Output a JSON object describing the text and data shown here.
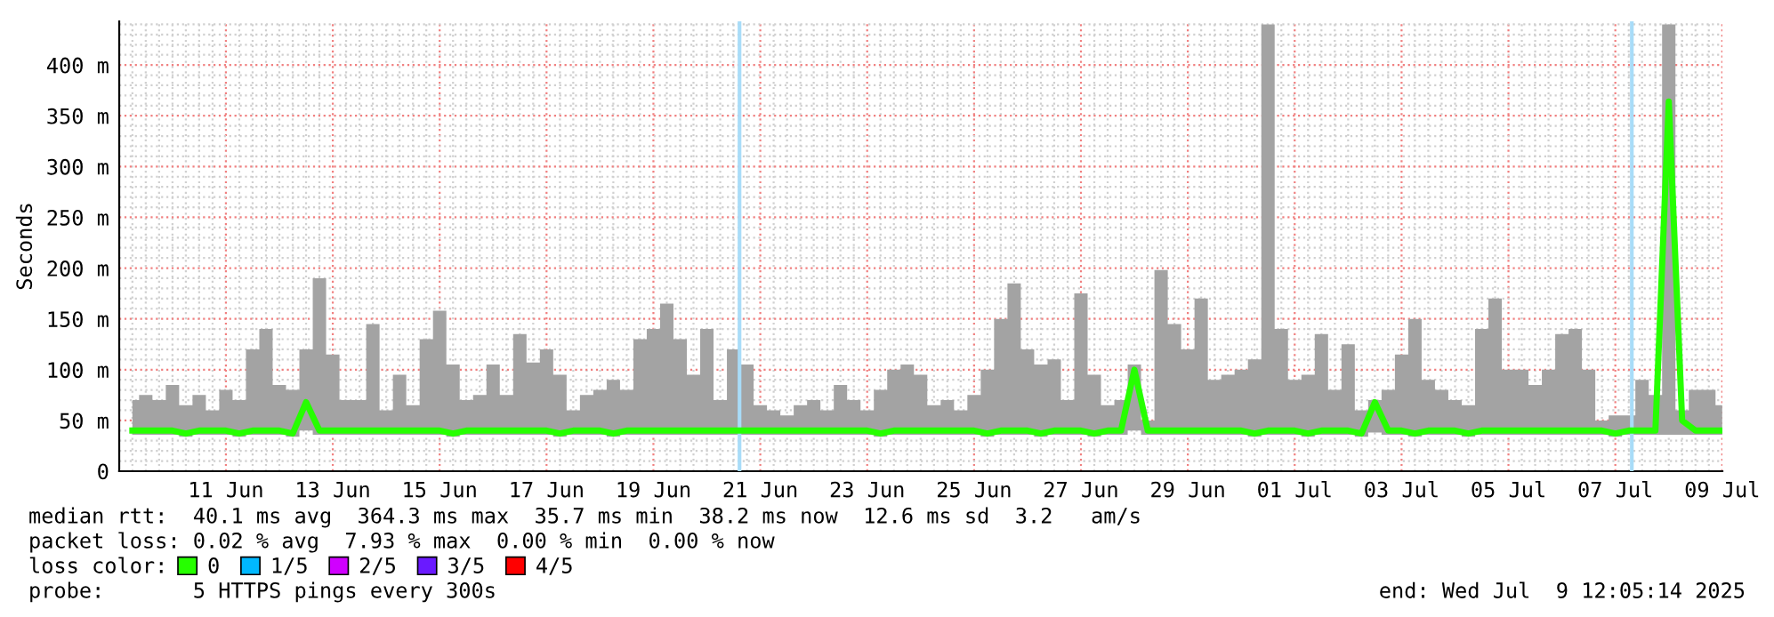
{
  "chart_data": {
    "type": "line",
    "ylabel": "Seconds",
    "x": [
      "2025-06-09T18:00",
      "2025-06-10T00:00",
      "2025-06-10T06:00",
      "2025-06-10T12:00",
      "2025-06-10T18:00",
      "2025-06-11T00:00",
      "2025-06-11T06:00",
      "2025-06-11T12:00",
      "2025-06-11T18:00",
      "2025-06-12T00:00",
      "2025-06-12T06:00",
      "2025-06-12T12:00",
      "2025-06-12T18:00",
      "2025-06-13T00:00",
      "2025-06-13T06:00",
      "2025-06-13T12:00",
      "2025-06-13T18:00",
      "2025-06-14T00:00",
      "2025-06-14T06:00",
      "2025-06-14T12:00",
      "2025-06-14T18:00",
      "2025-06-15T00:00",
      "2025-06-15T06:00",
      "2025-06-15T12:00",
      "2025-06-15T18:00",
      "2025-06-16T00:00",
      "2025-06-16T06:00",
      "2025-06-16T12:00",
      "2025-06-16T18:00",
      "2025-06-17T00:00",
      "2025-06-17T06:00",
      "2025-06-17T12:00",
      "2025-06-17T18:00",
      "2025-06-18T00:00",
      "2025-06-18T06:00",
      "2025-06-18T12:00",
      "2025-06-18T18:00",
      "2025-06-19T00:00",
      "2025-06-19T06:00",
      "2025-06-19T12:00",
      "2025-06-19T18:00",
      "2025-06-20T00:00",
      "2025-06-20T06:00",
      "2025-06-20T12:00",
      "2025-06-20T18:00",
      "2025-06-21T00:00",
      "2025-06-21T06:00",
      "2025-06-21T12:00",
      "2025-06-21T18:00",
      "2025-06-22T00:00",
      "2025-06-22T06:00",
      "2025-06-22T12:00",
      "2025-06-22T18:00",
      "2025-06-23T00:00",
      "2025-06-23T06:00",
      "2025-06-23T12:00",
      "2025-06-23T18:00",
      "2025-06-24T00:00",
      "2025-06-24T06:00",
      "2025-06-24T12:00",
      "2025-06-24T18:00",
      "2025-06-25T00:00",
      "2025-06-25T06:00",
      "2025-06-25T12:00",
      "2025-06-25T18:00",
      "2025-06-26T00:00",
      "2025-06-26T06:00",
      "2025-06-26T12:00",
      "2025-06-26T18:00",
      "2025-06-27T00:00",
      "2025-06-27T06:00",
      "2025-06-27T12:00",
      "2025-06-27T18:00",
      "2025-06-28T00:00",
      "2025-06-28T06:00",
      "2025-06-28T12:00",
      "2025-06-28T18:00",
      "2025-06-29T00:00",
      "2025-06-29T06:00",
      "2025-06-29T12:00",
      "2025-06-29T18:00",
      "2025-06-30T00:00",
      "2025-06-30T06:00",
      "2025-06-30T12:00",
      "2025-06-30T18:00",
      "2025-07-01T00:00",
      "2025-07-01T06:00",
      "2025-07-01T12:00",
      "2025-07-01T18:00",
      "2025-07-02T00:00",
      "2025-07-02T06:00",
      "2025-07-02T12:00",
      "2025-07-02T18:00",
      "2025-07-03T00:00",
      "2025-07-03T06:00",
      "2025-07-03T12:00",
      "2025-07-03T18:00",
      "2025-07-04T00:00",
      "2025-07-04T06:00",
      "2025-07-04T12:00",
      "2025-07-04T18:00",
      "2025-07-05T00:00",
      "2025-07-05T06:00",
      "2025-07-05T12:00",
      "2025-07-05T18:00",
      "2025-07-06T00:00",
      "2025-07-06T06:00",
      "2025-07-06T12:00",
      "2025-07-06T18:00",
      "2025-07-07T00:00",
      "2025-07-07T06:00",
      "2025-07-07T12:00",
      "2025-07-07T18:00",
      "2025-07-08T00:00",
      "2025-07-08T06:00",
      "2025-07-08T12:00",
      "2025-07-08T18:00",
      "2025-07-09T00:00",
      "2025-07-09T06:00",
      "2025-07-09T12:00"
    ],
    "series": [
      {
        "name": "0",
        "color": "#26ff00",
        "values": [
          40,
          40,
          40,
          40,
          37,
          40,
          40,
          40,
          37,
          40,
          40,
          40,
          37,
          68,
          40,
          40,
          40,
          40,
          40,
          40,
          40,
          40,
          40,
          40,
          37,
          40,
          40,
          40,
          40,
          40,
          40,
          40,
          37,
          40,
          40,
          40,
          37,
          40,
          40,
          40,
          40,
          40,
          40,
          40,
          40,
          40,
          40,
          40,
          40,
          40,
          40,
          40,
          40,
          40,
          40,
          40,
          37,
          40,
          40,
          40,
          40,
          40,
          40,
          40,
          37,
          40,
          40,
          40,
          37,
          40,
          40,
          40,
          37,
          40,
          40,
          100,
          40,
          40,
          40,
          40,
          40,
          40,
          40,
          40,
          37,
          40,
          40,
          40,
          37,
          40,
          40,
          40,
          37,
          68,
          40,
          40,
          37,
          40,
          40,
          40,
          37,
          40,
          40,
          40,
          40,
          40,
          40,
          40,
          40,
          40,
          40,
          37,
          40,
          40,
          40,
          364,
          50,
          40,
          40,
          40
        ],
        "lower": [
          36,
          36,
          36,
          36,
          34,
          36,
          36,
          36,
          34,
          36,
          36,
          36,
          34,
          40,
          36,
          36,
          36,
          36,
          36,
          36,
          36,
          36,
          36,
          36,
          34,
          36,
          36,
          36,
          36,
          36,
          36,
          36,
          34,
          36,
          36,
          36,
          34,
          36,
          36,
          36,
          36,
          36,
          36,
          36,
          36,
          36,
          36,
          36,
          36,
          36,
          36,
          36,
          36,
          36,
          36,
          36,
          34,
          36,
          36,
          36,
          36,
          36,
          36,
          36,
          34,
          36,
          36,
          36,
          34,
          36,
          36,
          36,
          34,
          36,
          36,
          40,
          36,
          36,
          36,
          36,
          36,
          36,
          36,
          36,
          34,
          36,
          36,
          36,
          34,
          36,
          36,
          36,
          34,
          38,
          36,
          36,
          34,
          36,
          36,
          36,
          34,
          36,
          36,
          36,
          36,
          36,
          36,
          36,
          36,
          36,
          36,
          34,
          36,
          36,
          36,
          36,
          36,
          36,
          36,
          36
        ],
        "upper": [
          70,
          75,
          70,
          85,
          65,
          75,
          60,
          80,
          70,
          120,
          140,
          85,
          80,
          120,
          190,
          115,
          70,
          70,
          145,
          60,
          95,
          65,
          130,
          158,
          105,
          70,
          75,
          105,
          75,
          135,
          107,
          120,
          95,
          60,
          75,
          80,
          90,
          80,
          130,
          140,
          165,
          130,
          95,
          140,
          70,
          120,
          105,
          65,
          60,
          55,
          65,
          70,
          60,
          85,
          70,
          60,
          80,
          100,
          105,
          95,
          65,
          70,
          60,
          75,
          100,
          150,
          185,
          120,
          105,
          110,
          70,
          175,
          95,
          65,
          70,
          105,
          50,
          198,
          145,
          120,
          170,
          90,
          95,
          100,
          110,
          440,
          140,
          90,
          95,
          135,
          80,
          125,
          60,
          70,
          80,
          115,
          150,
          90,
          80,
          70,
          65,
          140,
          170,
          100,
          100,
          85,
          100,
          135,
          140,
          100,
          50,
          55,
          55,
          90,
          75,
          440,
          60,
          80,
          80,
          65
        ]
      },
      {
        "name": "1/5",
        "color": "#00b8ff",
        "values": [
          null,
          null,
          null,
          null,
          null,
          null,
          null,
          null,
          null,
          null,
          null,
          null,
          null,
          null,
          null,
          null,
          null,
          null,
          null,
          null,
          null,
          null,
          null,
          null,
          null,
          null,
          null,
          null,
          null,
          null,
          null,
          null,
          null,
          null,
          null,
          null,
          null,
          null,
          null,
          null,
          null,
          null,
          null,
          null,
          null,
          null,
          null,
          null,
          null,
          null,
          null,
          null,
          null,
          null,
          null,
          null,
          null,
          null,
          null,
          null,
          null,
          null,
          null,
          null,
          null,
          null,
          null,
          null,
          null,
          null,
          null,
          null,
          null,
          null,
          null,
          null,
          null,
          null,
          null,
          null,
          null,
          null,
          null,
          null,
          null,
          null,
          null,
          null,
          null,
          null,
          null,
          null,
          null,
          null,
          null,
          null,
          null,
          null,
          null,
          null,
          null,
          null,
          null,
          null,
          null,
          null,
          null,
          null,
          null,
          null,
          null,
          null,
          null,
          null,
          null,
          null,
          null,
          null,
          null,
          null
        ]
      },
      {
        "name": "2/5",
        "color": "#d000ff",
        "values": [
          null,
          null,
          null,
          null,
          null,
          null,
          null,
          null,
          null,
          null,
          null,
          null,
          null,
          null,
          null,
          null,
          null,
          null,
          null,
          null,
          null,
          null,
          null,
          null,
          null,
          null,
          null,
          null,
          null,
          null,
          null,
          null,
          null,
          null,
          null,
          null,
          null,
          null,
          null,
          null,
          null,
          null,
          null,
          null,
          null,
          null,
          null,
          null,
          null,
          null,
          null,
          null,
          null,
          null,
          null,
          null,
          null,
          null,
          null,
          null,
          null,
          null,
          null,
          null,
          null,
          null,
          null,
          null,
          null,
          null,
          null,
          null,
          null,
          null,
          null,
          null,
          null,
          null,
          null,
          null,
          null,
          null,
          null,
          null,
          null,
          null,
          null,
          null,
          null,
          null,
          null,
          null,
          null,
          null,
          null,
          null,
          null,
          null,
          null,
          null,
          null,
          null,
          null,
          null,
          null,
          null,
          null,
          null,
          null,
          null,
          null,
          null,
          null,
          null,
          null,
          null,
          null,
          null,
          null,
          null
        ]
      },
      {
        "name": "3/5",
        "color": "#6a1aff",
        "values": [
          null,
          null,
          null,
          null,
          null,
          null,
          null,
          null,
          null,
          null,
          null,
          null,
          null,
          null,
          null,
          null,
          null,
          null,
          null,
          null,
          null,
          null,
          null,
          null,
          null,
          null,
          null,
          null,
          null,
          null,
          null,
          null,
          null,
          null,
          null,
          null,
          null,
          null,
          null,
          null,
          null,
          null,
          null,
          null,
          null,
          null,
          null,
          null,
          null,
          null,
          null,
          null,
          null,
          null,
          null,
          null,
          null,
          null,
          null,
          null,
          null,
          null,
          null,
          null,
          null,
          null,
          null,
          null,
          null,
          null,
          null,
          null,
          null,
          null,
          null,
          null,
          null,
          null,
          null,
          null,
          null,
          null,
          null,
          null,
          null,
          null,
          null,
          null,
          null,
          null,
          null,
          null,
          null,
          null,
          null,
          null,
          null,
          null,
          null,
          null,
          null,
          null,
          null,
          null,
          null,
          null,
          null,
          null,
          null,
          null,
          null,
          null,
          null,
          null,
          null,
          null,
          null,
          null,
          null,
          null
        ]
      },
      {
        "name": "4/5",
        "color": "#ff0000",
        "values": [
          null,
          null,
          null,
          null,
          null,
          null,
          null,
          null,
          null,
          null,
          null,
          null,
          null,
          null,
          null,
          null,
          null,
          null,
          null,
          null,
          null,
          null,
          null,
          null,
          null,
          null,
          null,
          null,
          null,
          null,
          null,
          null,
          null,
          null,
          null,
          null,
          null,
          null,
          null,
          null,
          null,
          null,
          null,
          null,
          null,
          null,
          null,
          null,
          null,
          null,
          null,
          null,
          null,
          null,
          null,
          null,
          null,
          null,
          null,
          null,
          null,
          null,
          null,
          null,
          null,
          null,
          null,
          null,
          null,
          null,
          null,
          null,
          null,
          null,
          null,
          null,
          null,
          null,
          null,
          null,
          null,
          null,
          null,
          null,
          null,
          null,
          null,
          null,
          null,
          null,
          null,
          null,
          null,
          null,
          null,
          null,
          null,
          null,
          null,
          null,
          null,
          null,
          null,
          null,
          null,
          null,
          null,
          null,
          null,
          null,
          null,
          null,
          null,
          null,
          null,
          null,
          null,
          null,
          null,
          null
        ]
      }
    ],
    "ref_lines": [
      {
        "axis": "x",
        "value": "2025-06-21T02:40",
        "color": "#a8dcf8"
      },
      {
        "axis": "x",
        "value": "2025-07-07T19:25",
        "color": "#a8dcf8"
      }
    ],
    "xlim": [
      "2025-06-09T12:05",
      "2025-07-09T12:05"
    ],
    "xticks": [
      {
        "value": "2025-06-11T12:00",
        "label": "11 Jun"
      },
      {
        "value": "2025-06-13T12:00",
        "label": "13 Jun"
      },
      {
        "value": "2025-06-15T12:00",
        "label": "15 Jun"
      },
      {
        "value": "2025-06-17T12:00",
        "label": "17 Jun"
      },
      {
        "value": "2025-06-19T12:00",
        "label": "19 Jun"
      },
      {
        "value": "2025-06-21T12:00",
        "label": "21 Jun"
      },
      {
        "value": "2025-06-23T12:00",
        "label": "23 Jun"
      },
      {
        "value": "2025-06-25T12:00",
        "label": "25 Jun"
      },
      {
        "value": "2025-06-27T12:00",
        "label": "27 Jun"
      },
      {
        "value": "2025-06-29T12:00",
        "label": "29 Jun"
      },
      {
        "value": "2025-07-01T12:00",
        "label": "01 Jul"
      },
      {
        "value": "2025-07-03T12:00",
        "label": "03 Jul"
      },
      {
        "value": "2025-07-05T12:00",
        "label": "05 Jul"
      },
      {
        "value": "2025-07-07T12:00",
        "label": "07 Jul"
      },
      {
        "value": "2025-07-09T12:00",
        "label": "09 Jul"
      }
    ],
    "ylim": [
      0,
      443
    ],
    "yticks": [
      0,
      {
        "value": 50,
        "label": "50 m"
      },
      {
        "value": 100,
        "label": "100 m"
      },
      {
        "value": 150,
        "label": "150 m"
      },
      {
        "value": 200,
        "label": "200 m"
      },
      {
        "value": 250,
        "label": "250 m"
      },
      {
        "value": 300,
        "label": "300 m"
      },
      {
        "value": 350,
        "label": "350 m"
      },
      {
        "value": 400,
        "label": "400 m"
      }
    ],
    "grid": true,
    "legend": "bottom",
    "annotations": [
      "median rtt:  40.1 ms avg  364.3 ms max  35.7 ms min  38.2 ms now  12.6 ms sd  3.2   am/s",
      "packet loss: 0.02 % avg  7.93 % max  0.00 % min  0.00 % now",
      "loss color:",
      "probe:       5 HTTPS pings every 300s",
      "end: Wed Jul  9 12:05:14 2025"
    ]
  }
}
